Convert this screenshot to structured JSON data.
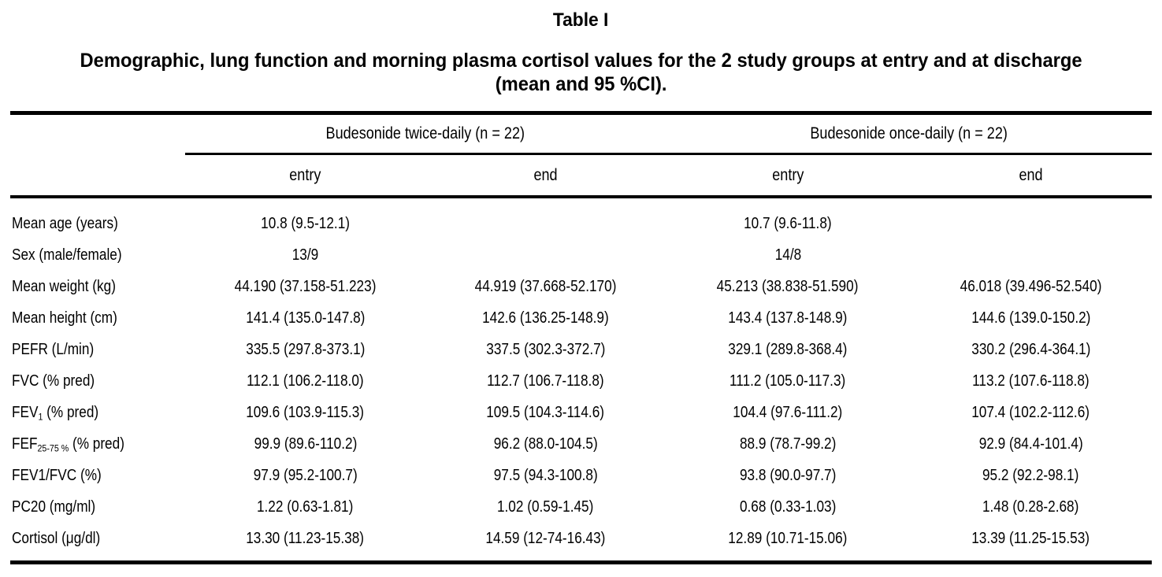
{
  "page": {
    "title": "Table I",
    "subtitle_line1": "Demographic, lung function and morning plasma cortisol values for the 2 study groups at entry and at discharge",
    "subtitle_line2": "(mean and 95 %CI)."
  },
  "table": {
    "group_headers": [
      {
        "label": "Budesonide twice-daily (n = 22)"
      },
      {
        "label": "Budesonide once-daily (n = 22)"
      }
    ],
    "sub_headers": [
      "entry",
      "end",
      "entry",
      "end"
    ],
    "rows": [
      {
        "label_main": "Mean age (years)",
        "label_sub": "",
        "label_rest": "",
        "values": [
          "10.8 (9.5-12.1)",
          "",
          "10.7 (9.6-11.8)",
          ""
        ]
      },
      {
        "label_main": "Sex (male/female)",
        "label_sub": "",
        "label_rest": "",
        "values": [
          "13/9",
          "",
          "14/8",
          ""
        ]
      },
      {
        "label_main": "Mean weight (kg)",
        "label_sub": "",
        "label_rest": "",
        "values": [
          "44.190 (37.158-51.223)",
          "44.919 (37.668-52.170)",
          "45.213 (38.838-51.590)",
          "46.018 (39.496-52.540)"
        ]
      },
      {
        "label_main": "Mean height (cm)",
        "label_sub": "",
        "label_rest": "",
        "values": [
          "141.4 (135.0-147.8)",
          "142.6 (136.25-148.9)",
          "143.4 (137.8-148.9)",
          "144.6 (139.0-150.2)"
        ]
      },
      {
        "label_main": "PEFR (L/min)",
        "label_sub": "",
        "label_rest": "",
        "values": [
          "335.5 (297.8-373.1)",
          "337.5 (302.3-372.7)",
          "329.1 (289.8-368.4)",
          "330.2 (296.4-364.1)"
        ]
      },
      {
        "label_main": "FVC (% pred)",
        "label_sub": "",
        "label_rest": "",
        "values": [
          "112.1 (106.2-118.0)",
          "112.7 (106.7-118.8)",
          "111.2 (105.0-117.3)",
          "113.2 (107.6-118.8)"
        ]
      },
      {
        "label_main": "FEV",
        "label_sub": "1",
        "label_rest": " (% pred)",
        "values": [
          "109.6 (103.9-115.3)",
          "109.5 (104.3-114.6)",
          "104.4 (97.6-111.2)",
          "107.4 (102.2-112.6)"
        ]
      },
      {
        "label_main": "FEF",
        "label_sub": "25-75 %",
        "label_rest": " (% pred)",
        "values": [
          "99.9 (89.6-110.2)",
          "96.2 (88.0-104.5)",
          "88.9 (78.7-99.2)",
          "92.9 (84.4-101.4)"
        ]
      },
      {
        "label_main": "FEV1/FVC (%)",
        "label_sub": "",
        "label_rest": "",
        "values": [
          "97.9 (95.2-100.7)",
          "97.5 (94.3-100.8)",
          "93.8 (90.0-97.7)",
          "95.2 (92.2-98.1)"
        ]
      },
      {
        "label_main": "PC20 (mg/ml)",
        "label_sub": "",
        "label_rest": "",
        "values": [
          "1.22 (0.63-1.81)",
          "1.02 (0.59-1.45)",
          "0.68 (0.33-1.03)",
          "1.48 (0.28-2.68)"
        ]
      },
      {
        "label_main": "Cortisol (μg/dl)",
        "label_sub": "",
        "label_rest": "",
        "values": [
          "13.30 (11.23-15.38)",
          "14.59 (12-74-16.43)",
          "12.89 (10.71-15.06)",
          "13.39 (11.25-15.53)"
        ]
      }
    ]
  },
  "colors": {
    "background": "#ffffff",
    "text": "#000000",
    "rule": "#000000"
  }
}
